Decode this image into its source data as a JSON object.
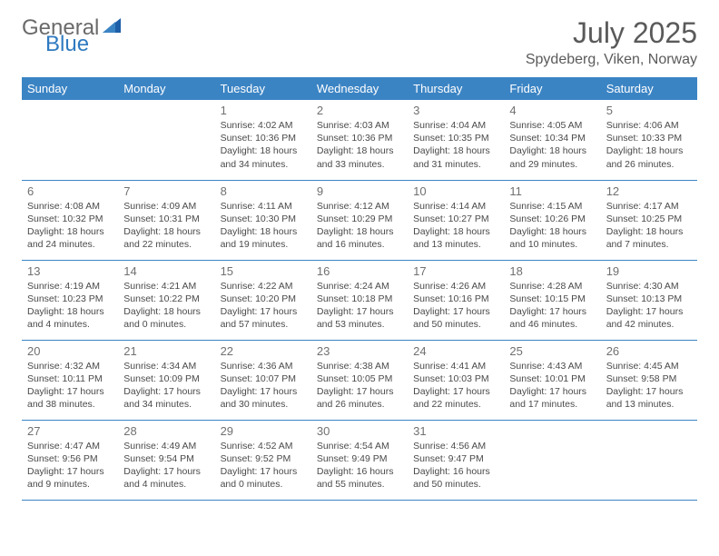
{
  "logo": {
    "word1": "General",
    "word2": "Blue"
  },
  "title": "July 2025",
  "location": "Spydeberg, Viken, Norway",
  "colors": {
    "header_bg": "#3b84c4",
    "header_text": "#ffffff",
    "logo_gray": "#6a6a6a",
    "logo_blue": "#2f7ac0",
    "title_gray": "#5a5a5a",
    "cell_text": "#4a4a4a",
    "daynum_gray": "#707070",
    "rule": "#3b84c4"
  },
  "weekdays": [
    "Sunday",
    "Monday",
    "Tuesday",
    "Wednesday",
    "Thursday",
    "Friday",
    "Saturday"
  ],
  "weeks": [
    [
      null,
      null,
      {
        "n": "1",
        "sr": "Sunrise: 4:02 AM",
        "ss": "Sunset: 10:36 PM",
        "dl": "Daylight: 18 hours and 34 minutes."
      },
      {
        "n": "2",
        "sr": "Sunrise: 4:03 AM",
        "ss": "Sunset: 10:36 PM",
        "dl": "Daylight: 18 hours and 33 minutes."
      },
      {
        "n": "3",
        "sr": "Sunrise: 4:04 AM",
        "ss": "Sunset: 10:35 PM",
        "dl": "Daylight: 18 hours and 31 minutes."
      },
      {
        "n": "4",
        "sr": "Sunrise: 4:05 AM",
        "ss": "Sunset: 10:34 PM",
        "dl": "Daylight: 18 hours and 29 minutes."
      },
      {
        "n": "5",
        "sr": "Sunrise: 4:06 AM",
        "ss": "Sunset: 10:33 PM",
        "dl": "Daylight: 18 hours and 26 minutes."
      }
    ],
    [
      {
        "n": "6",
        "sr": "Sunrise: 4:08 AM",
        "ss": "Sunset: 10:32 PM",
        "dl": "Daylight: 18 hours and 24 minutes."
      },
      {
        "n": "7",
        "sr": "Sunrise: 4:09 AM",
        "ss": "Sunset: 10:31 PM",
        "dl": "Daylight: 18 hours and 22 minutes."
      },
      {
        "n": "8",
        "sr": "Sunrise: 4:11 AM",
        "ss": "Sunset: 10:30 PM",
        "dl": "Daylight: 18 hours and 19 minutes."
      },
      {
        "n": "9",
        "sr": "Sunrise: 4:12 AM",
        "ss": "Sunset: 10:29 PM",
        "dl": "Daylight: 18 hours and 16 minutes."
      },
      {
        "n": "10",
        "sr": "Sunrise: 4:14 AM",
        "ss": "Sunset: 10:27 PM",
        "dl": "Daylight: 18 hours and 13 minutes."
      },
      {
        "n": "11",
        "sr": "Sunrise: 4:15 AM",
        "ss": "Sunset: 10:26 PM",
        "dl": "Daylight: 18 hours and 10 minutes."
      },
      {
        "n": "12",
        "sr": "Sunrise: 4:17 AM",
        "ss": "Sunset: 10:25 PM",
        "dl": "Daylight: 18 hours and 7 minutes."
      }
    ],
    [
      {
        "n": "13",
        "sr": "Sunrise: 4:19 AM",
        "ss": "Sunset: 10:23 PM",
        "dl": "Daylight: 18 hours and 4 minutes."
      },
      {
        "n": "14",
        "sr": "Sunrise: 4:21 AM",
        "ss": "Sunset: 10:22 PM",
        "dl": "Daylight: 18 hours and 0 minutes."
      },
      {
        "n": "15",
        "sr": "Sunrise: 4:22 AM",
        "ss": "Sunset: 10:20 PM",
        "dl": "Daylight: 17 hours and 57 minutes."
      },
      {
        "n": "16",
        "sr": "Sunrise: 4:24 AM",
        "ss": "Sunset: 10:18 PM",
        "dl": "Daylight: 17 hours and 53 minutes."
      },
      {
        "n": "17",
        "sr": "Sunrise: 4:26 AM",
        "ss": "Sunset: 10:16 PM",
        "dl": "Daylight: 17 hours and 50 minutes."
      },
      {
        "n": "18",
        "sr": "Sunrise: 4:28 AM",
        "ss": "Sunset: 10:15 PM",
        "dl": "Daylight: 17 hours and 46 minutes."
      },
      {
        "n": "19",
        "sr": "Sunrise: 4:30 AM",
        "ss": "Sunset: 10:13 PM",
        "dl": "Daylight: 17 hours and 42 minutes."
      }
    ],
    [
      {
        "n": "20",
        "sr": "Sunrise: 4:32 AM",
        "ss": "Sunset: 10:11 PM",
        "dl": "Daylight: 17 hours and 38 minutes."
      },
      {
        "n": "21",
        "sr": "Sunrise: 4:34 AM",
        "ss": "Sunset: 10:09 PM",
        "dl": "Daylight: 17 hours and 34 minutes."
      },
      {
        "n": "22",
        "sr": "Sunrise: 4:36 AM",
        "ss": "Sunset: 10:07 PM",
        "dl": "Daylight: 17 hours and 30 minutes."
      },
      {
        "n": "23",
        "sr": "Sunrise: 4:38 AM",
        "ss": "Sunset: 10:05 PM",
        "dl": "Daylight: 17 hours and 26 minutes."
      },
      {
        "n": "24",
        "sr": "Sunrise: 4:41 AM",
        "ss": "Sunset: 10:03 PM",
        "dl": "Daylight: 17 hours and 22 minutes."
      },
      {
        "n": "25",
        "sr": "Sunrise: 4:43 AM",
        "ss": "Sunset: 10:01 PM",
        "dl": "Daylight: 17 hours and 17 minutes."
      },
      {
        "n": "26",
        "sr": "Sunrise: 4:45 AM",
        "ss": "Sunset: 9:58 PM",
        "dl": "Daylight: 17 hours and 13 minutes."
      }
    ],
    [
      {
        "n": "27",
        "sr": "Sunrise: 4:47 AM",
        "ss": "Sunset: 9:56 PM",
        "dl": "Daylight: 17 hours and 9 minutes."
      },
      {
        "n": "28",
        "sr": "Sunrise: 4:49 AM",
        "ss": "Sunset: 9:54 PM",
        "dl": "Daylight: 17 hours and 4 minutes."
      },
      {
        "n": "29",
        "sr": "Sunrise: 4:52 AM",
        "ss": "Sunset: 9:52 PM",
        "dl": "Daylight: 17 hours and 0 minutes."
      },
      {
        "n": "30",
        "sr": "Sunrise: 4:54 AM",
        "ss": "Sunset: 9:49 PM",
        "dl": "Daylight: 16 hours and 55 minutes."
      },
      {
        "n": "31",
        "sr": "Sunrise: 4:56 AM",
        "ss": "Sunset: 9:47 PM",
        "dl": "Daylight: 16 hours and 50 minutes."
      },
      null,
      null
    ]
  ]
}
